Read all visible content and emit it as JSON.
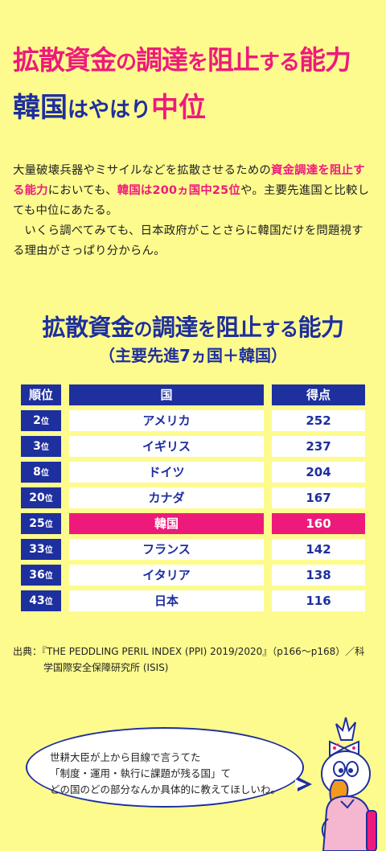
{
  "headline": {
    "line1": [
      {
        "t": "拡散資金",
        "s": false
      },
      {
        "t": "の",
        "s": true
      },
      {
        "t": "調達",
        "s": false
      },
      {
        "t": "を",
        "s": true
      },
      {
        "t": "阻止",
        "s": false
      },
      {
        "t": "する",
        "s": true
      },
      {
        "t": "能力",
        "s": false
      }
    ],
    "line2_a": "韓国",
    "line2_b": "はやはり",
    "line2_c": "中位"
  },
  "body": {
    "p1_a": "大量破壊兵器やミサイルなどを拡散させるための",
    "p1_hl1": "資金調達を阻止する能力",
    "p1_b": "においても、",
    "p1_hl2": "韓国は200ヵ国中25位",
    "p1_c": "や。主要先進国と比較しても中位にあたる。",
    "p2": "いくら調べてみても、日本政府がことさらに韓国だけを問題視する理由がさっぱり分からん。"
  },
  "chart_data": {
    "type": "table",
    "title_parts": [
      {
        "t": "拡散資金",
        "s": false
      },
      {
        "t": "の",
        "s": true
      },
      {
        "t": "調達",
        "s": false
      },
      {
        "t": "を",
        "s": true
      },
      {
        "t": "阻止",
        "s": false
      },
      {
        "t": "する",
        "s": true
      },
      {
        "t": "能力",
        "s": false
      }
    ],
    "subtitle": "（主要先進7ヵ国＋韓国）",
    "columns": [
      "順位",
      "国",
      "得点"
    ],
    "rows": [
      {
        "rank": "2",
        "unit": "位",
        "country": "アメリカ",
        "score": "252",
        "highlight": false
      },
      {
        "rank": "3",
        "unit": "位",
        "country": "イギリス",
        "score": "237",
        "highlight": false
      },
      {
        "rank": "8",
        "unit": "位",
        "country": "ドイツ",
        "score": "204",
        "highlight": false
      },
      {
        "rank": "20",
        "unit": "位",
        "country": "カナダ",
        "score": "167",
        "highlight": false
      },
      {
        "rank": "25",
        "unit": "位",
        "country": "韓国",
        "score": "160",
        "highlight": true
      },
      {
        "rank": "33",
        "unit": "位",
        "country": "フランス",
        "score": "142",
        "highlight": false
      },
      {
        "rank": "36",
        "unit": "位",
        "country": "イタリア",
        "score": "138",
        "highlight": false
      },
      {
        "rank": "43",
        "unit": "位",
        "country": "日本",
        "score": "116",
        "highlight": false
      }
    ]
  },
  "source": {
    "line1": "出典：『THE PEDDLING PERIL INDEX (PPI) 2019/2020』（p166～p168）／科",
    "line2": "学国際安全保障研究所 (ISIS)"
  },
  "speech": {
    "line1": "世耕大臣が上から目線で言うてた",
    "line2": "「制度・運用・執行に課題が残る国」て",
    "line3": "どの国のどの部分なんか具体的に教えてほしいわ。"
  },
  "colors": {
    "background": "#fdfb8e",
    "navy": "#1e2f9e",
    "pink": "#ee1a7b"
  },
  "icons": {
    "mascot": "cartoon-bird-mascot-illustration"
  }
}
